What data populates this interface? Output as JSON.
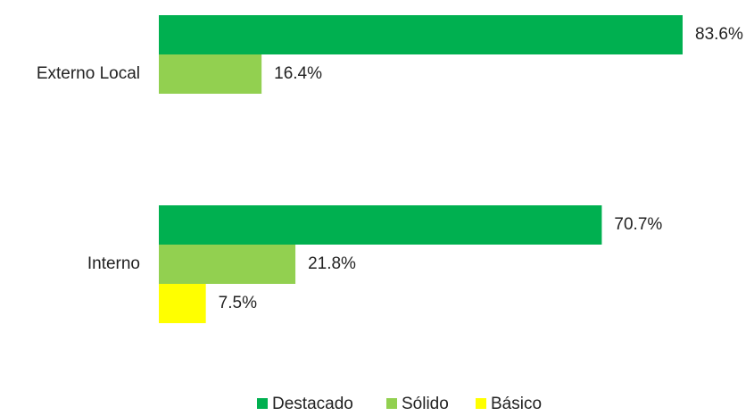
{
  "chart_data": {
    "type": "bar",
    "orientation": "horizontal",
    "categories": [
      "Externo Local",
      "Interno"
    ],
    "series": [
      {
        "name": "Destacado",
        "color": "#00b050",
        "values": [
          83.6,
          70.7
        ],
        "value_labels": [
          "83.6%",
          "70.7%"
        ]
      },
      {
        "name": "Sólido",
        "color": "#92d050",
        "values": [
          16.4,
          21.8
        ],
        "value_labels": [
          "16.4%",
          "21.8%"
        ]
      },
      {
        "name": "Básico",
        "color": "#ffff00",
        "values": [
          null,
          7.5
        ],
        "value_labels": [
          null,
          "7.5%"
        ]
      }
    ],
    "legend": "bottom"
  }
}
